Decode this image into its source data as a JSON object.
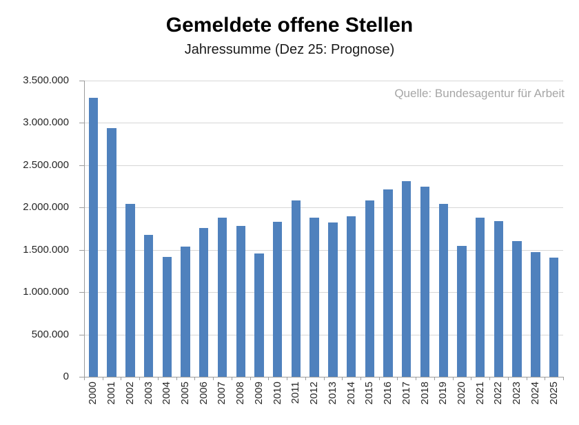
{
  "header": {
    "title": "Gemeldete offene Stellen",
    "subtitle": "Jahressumme (Dez 25: Prognose)",
    "source_note": "Quelle: Bundesagentur für Arbeit"
  },
  "colors": {
    "bar": "#4F81BD",
    "gridline": "#D6D6D6",
    "axis": "#9B9B9B",
    "axis_text": "#262626",
    "source_text": "#A6A6A6"
  },
  "chart_data": {
    "type": "bar",
    "title": "Gemeldete offene Stellen",
    "subtitle": "Jahressumme (Dez 25: Prognose)",
    "source": "Quelle: Bundesagentur für Arbeit",
    "categories": [
      "2000",
      "2001",
      "2002",
      "2003",
      "2004",
      "2005",
      "2006",
      "2007",
      "2008",
      "2009",
      "2010",
      "2011",
      "2012",
      "2013",
      "2014",
      "2015",
      "2016",
      "2017",
      "2018",
      "2019",
      "2020",
      "2021",
      "2022",
      "2023",
      "2024",
      "2025"
    ],
    "values": [
      3300000,
      2940000,
      2040000,
      1680000,
      1420000,
      1540000,
      1760000,
      1880000,
      1780000,
      1460000,
      1830000,
      2080000,
      1880000,
      1820000,
      1900000,
      2080000,
      2210000,
      2310000,
      2250000,
      2040000,
      1550000,
      1880000,
      1840000,
      1600000,
      1470000,
      1410000
    ],
    "ylim": [
      0,
      3500000
    ],
    "ytick_step": 500000,
    "ytick_labels": [
      "0",
      "500.000",
      "1.000.000",
      "1.500.000",
      "2.000.000",
      "2.500.000",
      "3.000.000",
      "3.500.000"
    ],
    "grid": true,
    "legend": "none",
    "xlabel": "",
    "ylabel": "",
    "bar_color": "#4F81BD",
    "note": "x tick labels rotated 90deg, values formatted with thousands dots"
  }
}
